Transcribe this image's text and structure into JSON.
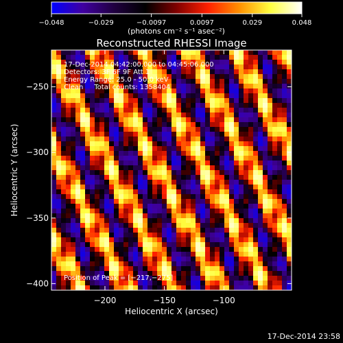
{
  "chart_data": {
    "type": "heatmap",
    "title": "Reconstructed RHESSI Image",
    "xlabel": "Heliocentric X (arcsec)",
    "ylabel": "Heliocentric Y (arcsec)",
    "xlim": [
      -245,
      -43
    ],
    "ylim": [
      -405,
      -222
    ],
    "x_ticks": [
      -200,
      -150,
      -100
    ],
    "y_ticks": [
      -400,
      -350,
      -300,
      -250
    ],
    "x_tick_labels": [
      "−200",
      "−150",
      "−100"
    ],
    "y_tick_labels": [
      "−400",
      "−350",
      "−300",
      "−250"
    ],
    "colorbar": {
      "min": -0.048,
      "max": 0.048,
      "ticks": [
        -0.048,
        -0.029,
        -0.0097,
        0.0097,
        0.029,
        0.048
      ],
      "tick_labels": [
        "−0.048",
        "−0.029",
        "−0.0097",
        "0.0097",
        "0.029",
        "0.048"
      ],
      "units": "(photons cm⁻² s⁻¹ asec⁻²)",
      "colors": [
        "#0000ff",
        "#4000a0",
        "#200040",
        "#000000",
        "#800000",
        "#ff2000",
        "#ff9000",
        "#ffff40",
        "#ffffff"
      ]
    },
    "annotations": [
      "17-Dec-2014 04:42:00.000 to 04:45:06.000",
      "Detectors: 3F 6F 9F Att 1",
      "Energy Range: 25.0 - 50.0 keV",
      "Clean     Total counts: 1358404",
      "Position of Peak = [−217,−275]"
    ],
    "peak": [
      -217,
      -275
    ]
  },
  "timestamp": "17-Dec-2014 23:58"
}
